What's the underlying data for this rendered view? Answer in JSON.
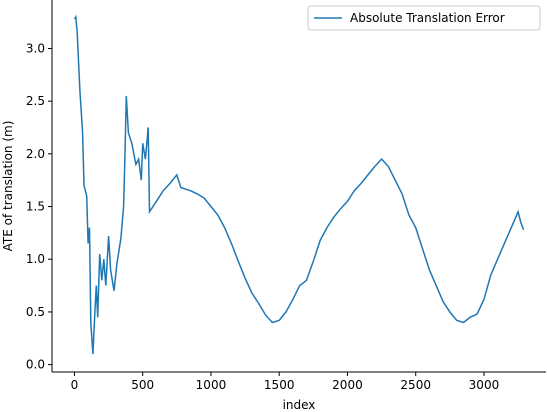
{
  "chart_data": {
    "type": "line",
    "xlabel": "index",
    "ylabel": "ATE of translation (m)",
    "x": [
      0,
      10,
      20,
      40,
      60,
      70,
      90,
      100,
      110,
      120,
      135,
      150,
      160,
      170,
      185,
      200,
      215,
      230,
      250,
      265,
      290,
      310,
      340,
      360,
      370,
      380,
      395,
      420,
      450,
      470,
      490,
      500,
      520,
      540,
      550,
      600,
      650,
      700,
      750,
      780,
      850,
      900,
      950,
      1000,
      1050,
      1100,
      1150,
      1200,
      1250,
      1300,
      1350,
      1400,
      1450,
      1500,
      1550,
      1600,
      1650,
      1700,
      1750,
      1800,
      1850,
      1900,
      1950,
      2000,
      2050,
      2100,
      2150,
      2200,
      2250,
      2300,
      2350,
      2400,
      2450,
      2500,
      2550,
      2600,
      2650,
      2700,
      2750,
      2800,
      2850,
      2900,
      2950,
      3000,
      3050,
      3100,
      3150,
      3200,
      3250,
      3270,
      3290
    ],
    "series": [
      {
        "name": "Absolute Translation Error",
        "color": "#1f77b4",
        "values": [
          3.28,
          3.3,
          3.15,
          2.6,
          2.2,
          1.7,
          1.6,
          1.15,
          1.3,
          0.4,
          0.1,
          0.5,
          0.75,
          0.45,
          1.05,
          0.8,
          1.0,
          0.75,
          1.22,
          0.9,
          0.7,
          0.95,
          1.2,
          1.5,
          2.0,
          2.55,
          2.2,
          2.1,
          1.9,
          1.95,
          1.75,
          2.1,
          1.95,
          2.25,
          1.45,
          1.55,
          1.65,
          1.72,
          1.8,
          1.68,
          1.65,
          1.62,
          1.58,
          1.5,
          1.42,
          1.3,
          1.15,
          0.98,
          0.82,
          0.68,
          0.58,
          0.47,
          0.4,
          0.42,
          0.5,
          0.62,
          0.75,
          0.8,
          0.98,
          1.18,
          1.3,
          1.4,
          1.48,
          1.55,
          1.65,
          1.72,
          1.8,
          1.88,
          1.95,
          1.88,
          1.75,
          1.62,
          1.42,
          1.3,
          1.1,
          0.9,
          0.75,
          0.6,
          0.5,
          0.42,
          0.4,
          0.45,
          0.48,
          0.62,
          0.85,
          1.0,
          1.15,
          1.3,
          1.45,
          1.35,
          1.28
        ]
      }
    ],
    "xlim": [
      -164.5,
      3454.5
    ],
    "xticks": [
      0,
      500,
      1000,
      1500,
      2000,
      2500,
      3000
    ],
    "ylim": [
      -0.07,
      3.46
    ],
    "yticks": [
      {
        "value": 0,
        "label": "0.0"
      },
      0.5,
      {
        "value": 1,
        "label": "1.0"
      },
      1.5,
      {
        "value": 2,
        "label": "2.0"
      },
      2.5,
      {
        "value": 3,
        "label": "3.0"
      }
    ],
    "legend": "upper right"
  }
}
